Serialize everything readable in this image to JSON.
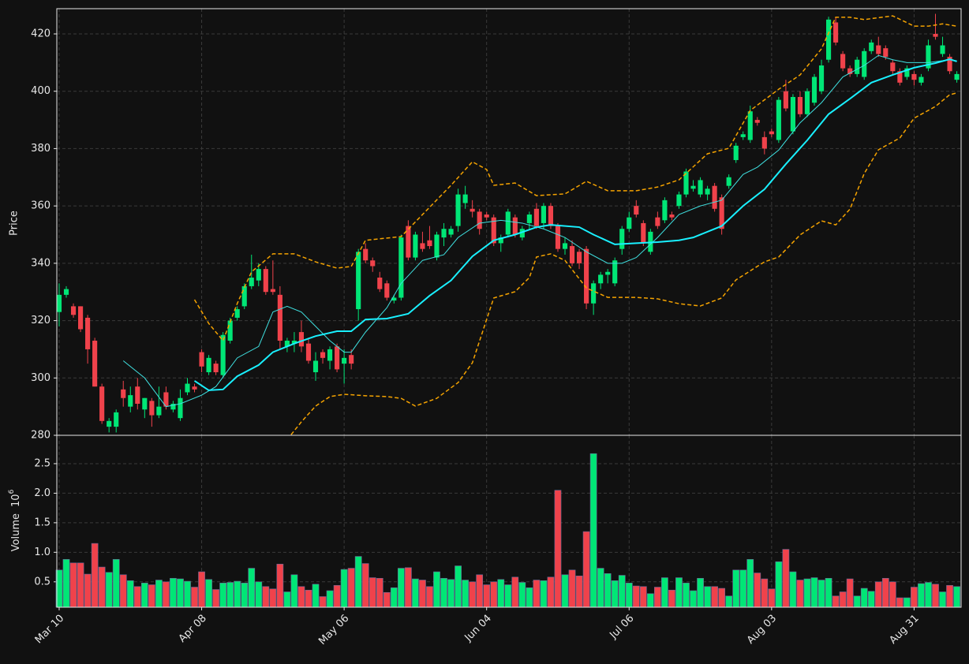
{
  "chart_data": [
    {
      "type": "candlestick",
      "y_label": "Price",
      "up_color": "#00e676",
      "down_color": "#f0424b",
      "xlim": [
        -0.33,
        126.6
      ],
      "ylim": [
        280,
        428.8
      ],
      "yticks": [
        280,
        300,
        320,
        340,
        360,
        380,
        400,
        420
      ],
      "grid": true,
      "open": [
        323,
        329,
        325,
        325,
        321,
        313,
        297,
        283,
        283,
        296,
        290,
        297,
        289,
        292,
        287,
        295,
        289,
        286,
        295,
        297,
        309,
        302,
        305,
        301,
        313,
        321,
        325,
        332,
        334,
        338,
        331,
        329,
        311,
        312,
        316,
        312,
        302,
        309,
        306,
        311,
        305,
        308,
        324,
        345,
        341,
        335,
        333,
        327,
        328,
        353,
        342,
        347,
        348,
        342,
        349,
        350,
        353,
        361,
        359,
        358,
        357,
        356,
        347,
        350,
        356,
        349,
        354,
        359,
        354,
        360,
        353,
        345,
        346,
        344,
        345,
        326,
        333,
        336,
        333,
        345,
        352,
        360,
        354,
        344,
        356,
        355,
        357,
        360,
        364,
        366,
        364,
        364,
        367,
        363,
        367,
        376,
        384,
        383,
        390,
        384,
        386,
        383,
        400,
        386,
        398,
        392,
        396,
        400,
        411,
        424,
        413,
        408,
        406,
        405,
        414,
        416,
        415,
        410,
        407,
        405,
        406,
        403,
        408,
        420,
        413,
        412,
        404
      ],
      "high": [
        333,
        332,
        326,
        325,
        322,
        314,
        298,
        286,
        289,
        299,
        297,
        300,
        293,
        293,
        297,
        297,
        292,
        296,
        300,
        298,
        310,
        308,
        306,
        316,
        321,
        325,
        333,
        343,
        340,
        339,
        341,
        332,
        314,
        316,
        320,
        314,
        309,
        310,
        311,
        312,
        310,
        310,
        345,
        347,
        342,
        337,
        334,
        329,
        350,
        355,
        351,
        351,
        353,
        351,
        354,
        353,
        366,
        367,
        362,
        359,
        358,
        357,
        350,
        359,
        357,
        353,
        358,
        361,
        361,
        361,
        354,
        349,
        348,
        345,
        346,
        334,
        337,
        338,
        342,
        353,
        358,
        362,
        355,
        352,
        358,
        363,
        358,
        365,
        373,
        369,
        370,
        367,
        368,
        364,
        371,
        382,
        386,
        395,
        391,
        386,
        387,
        398,
        404,
        399,
        400,
        401,
        406,
        411,
        426,
        426,
        414,
        409,
        412,
        415,
        418,
        419,
        416,
        411,
        408,
        409,
        407,
        406,
        418,
        427,
        419,
        413,
        407
      ],
      "low": [
        318,
        328,
        321,
        316,
        305,
        297,
        284,
        281,
        281,
        290,
        288,
        289,
        286,
        283,
        286,
        289,
        288,
        285,
        294,
        295,
        302,
        301,
        301,
        300,
        312,
        320,
        324,
        331,
        332,
        329,
        329,
        310,
        309,
        309,
        309,
        305,
        299,
        305,
        303,
        302,
        298,
        303,
        320,
        340,
        337,
        330,
        327,
        326,
        327,
        341,
        341,
        344,
        345,
        341,
        346,
        349,
        351,
        359,
        356,
        350,
        355,
        346,
        344,
        349,
        349,
        348,
        352,
        352,
        352,
        352,
        344,
        343,
        339,
        338,
        324,
        322,
        331,
        333,
        332,
        343,
        351,
        356,
        346,
        343,
        352,
        354,
        355,
        359,
        363,
        365,
        363,
        362,
        358,
        350,
        366,
        375,
        383,
        382,
        388,
        378,
        384,
        382,
        393,
        385,
        391,
        391,
        395,
        399,
        410,
        416,
        407,
        405,
        405,
        404,
        413,
        412,
        411,
        406,
        402,
        404,
        402,
        402,
        407,
        418,
        412,
        406,
        403
      ],
      "close": [
        329,
        331,
        322,
        317,
        310,
        297,
        285,
        285,
        288,
        293,
        294,
        291,
        293,
        287,
        290,
        290,
        291,
        293,
        298,
        296,
        304,
        307,
        302,
        315,
        320,
        324,
        332,
        335,
        338,
        330,
        330,
        313,
        313,
        313,
        311,
        306,
        306,
        307,
        310,
        303,
        307,
        305,
        344,
        341,
        339,
        331,
        328,
        328,
        349,
        342,
        350,
        345,
        346,
        350,
        352,
        352,
        364,
        364,
        358,
        352,
        356,
        347,
        349,
        358,
        350,
        352,
        357,
        353,
        360,
        353,
        345,
        347,
        340,
        340,
        326,
        333,
        336,
        337,
        341,
        352,
        356,
        357,
        347,
        351,
        353,
        362,
        356,
        364,
        372,
        367,
        369,
        366,
        359,
        352,
        370,
        381,
        385,
        393,
        389,
        380,
        385,
        397,
        394,
        398,
        392,
        400,
        405,
        409,
        425,
        417,
        408,
        406,
        411,
        414,
        417,
        413,
        412,
        407,
        403,
        408,
        404,
        405,
        416,
        419,
        416,
        407,
        406
      ],
      "lines": [
        {
          "color": "#f5a300",
          "width": 1.5,
          "dash": "5,3",
          "x": [
            19,
            21,
            23,
            25,
            27,
            30,
            33,
            36,
            39,
            41,
            43,
            46,
            48,
            51,
            55,
            58,
            60,
            61,
            64,
            67,
            71,
            74,
            77,
            81,
            84,
            87,
            91,
            94,
            97,
            101,
            104,
            107,
            109,
            111,
            113,
            117,
            120,
            122,
            124,
            126
          ],
          "values": [
            327.3,
            319,
            313,
            326,
            337,
            343.3,
            343.3,
            340.5,
            338.3,
            338.9,
            348,
            348.8,
            349.3,
            357,
            367.2,
            375.4,
            372.7,
            367.2,
            368,
            363.6,
            364.2,
            368.6,
            365.3,
            365.3,
            366.6,
            369.1,
            378.2,
            380.1,
            393.3,
            400.7,
            405.7,
            414.8,
            425.8,
            425.8,
            425,
            426.3,
            422.7,
            422.7,
            423.5,
            422.7
          ]
        },
        {
          "color": "#f5a300",
          "width": 1.5,
          "dash": "5,3",
          "x": [
            32,
            34,
            36,
            38,
            40,
            43,
            46,
            48,
            50,
            53,
            56,
            58,
            60,
            61,
            64,
            66,
            67,
            69,
            71,
            74,
            77,
            81,
            84,
            87,
            90,
            93,
            95,
            99,
            101,
            104,
            107,
            109,
            111,
            113,
            115,
            118,
            120,
            123,
            125,
            126
          ],
          "values": [
            278.5,
            284.7,
            290.2,
            293.5,
            294.3,
            293.8,
            293.5,
            292.9,
            290.2,
            292.9,
            298.4,
            305.3,
            320.4,
            327.9,
            330.1,
            335,
            342.2,
            343.3,
            341,
            331.4,
            328.1,
            328.1,
            327.6,
            325.9,
            325.1,
            327.9,
            334.2,
            340.5,
            342.2,
            349.9,
            354.8,
            353.4,
            358.9,
            371.3,
            379.6,
            383.7,
            390.6,
            394.7,
            398.8,
            399.4
          ]
        },
        {
          "color": "#3fe0e0",
          "width": 1,
          "dash": "none",
          "x": [
            9,
            12,
            15,
            17,
            20,
            22,
            25,
            28,
            30,
            32,
            34,
            36,
            38,
            40,
            41,
            43,
            46,
            48,
            51,
            54,
            56,
            59,
            62,
            65,
            68,
            71,
            74,
            77,
            79,
            81,
            84,
            87,
            90,
            93,
            96,
            98,
            101,
            104,
            107,
            110,
            113,
            115,
            117,
            119,
            122,
            125,
            126
          ],
          "values": [
            306,
            300,
            290,
            291,
            294,
            297,
            307,
            311,
            323,
            325,
            323,
            318,
            313,
            309,
            309,
            316,
            324.5,
            333,
            341,
            343,
            349,
            354,
            355,
            354,
            352,
            349,
            344,
            340,
            340,
            342,
            349,
            357,
            360,
            362,
            371,
            373.5,
            379.5,
            389,
            396,
            405,
            409,
            412.5,
            411,
            410,
            410,
            411,
            410.6
          ]
        },
        {
          "color": "#19f0ff",
          "width": 2,
          "dash": "none",
          "x": [
            19,
            21,
            23,
            25,
            28,
            30,
            33,
            36,
            39,
            41,
            43,
            46,
            49,
            52,
            55,
            58,
            61,
            64,
            67,
            69,
            73,
            75,
            78,
            81,
            84,
            87,
            89,
            93,
            96,
            99,
            102,
            105,
            108,
            111,
            114,
            117,
            120,
            123,
            125,
            126
          ],
          "values": [
            299,
            295.7,
            296,
            300.6,
            304.5,
            309,
            312,
            314.6,
            316.3,
            316.3,
            320.4,
            320.7,
            322.4,
            328.7,
            334,
            342.4,
            348,
            350,
            352.6,
            353.4,
            352.6,
            350,
            346.6,
            347,
            347.4,
            348,
            349,
            353,
            360,
            365.8,
            374.6,
            382.9,
            392,
            397.4,
            403,
            405.7,
            408.2,
            409.8,
            411.2,
            410.4
          ]
        }
      ]
    },
    {
      "type": "bar",
      "y_label": "Volume",
      "y_scale_base": "10",
      "y_scale_exponent": "6",
      "xlim": [
        -0.33,
        126.6
      ],
      "ylim": [
        0.07,
        2.98
      ],
      "yticks": [
        0.5,
        {
          "value": 1,
          "label": "1.0"
        },
        1.5,
        {
          "value": 2,
          "label": "2.0"
        },
        2.5
      ],
      "grid": true,
      "categories": [
        "Mar 10",
        null,
        null,
        null,
        null,
        null,
        null,
        null,
        null,
        null,
        null,
        null,
        null,
        null,
        null,
        null,
        null,
        null,
        null,
        null,
        "Apr 08",
        null,
        null,
        null,
        null,
        null,
        null,
        null,
        null,
        null,
        null,
        null,
        null,
        null,
        null,
        null,
        null,
        null,
        null,
        null,
        "May 06",
        null,
        null,
        null,
        null,
        null,
        null,
        null,
        null,
        null,
        null,
        null,
        null,
        null,
        null,
        null,
        null,
        null,
        null,
        null,
        "Jun 04",
        null,
        null,
        null,
        null,
        null,
        null,
        null,
        null,
        null,
        null,
        null,
        null,
        null,
        null,
        null,
        null,
        null,
        null,
        null,
        "Jul 06",
        null,
        null,
        null,
        null,
        null,
        null,
        null,
        null,
        null,
        null,
        null,
        null,
        null,
        null,
        null,
        null,
        null,
        null,
        null,
        "Aug 03",
        null,
        null,
        null,
        null,
        null,
        null,
        null,
        null,
        null,
        null,
        null,
        null,
        null,
        null,
        null,
        null,
        null,
        null,
        null,
        "Aug 31",
        null,
        null,
        null,
        null,
        null,
        null
      ],
      "values": [
        0.7,
        0.88,
        0.82,
        0.82,
        0.63,
        1.15,
        0.75,
        0.66,
        0.88,
        0.62,
        0.52,
        0.42,
        0.48,
        0.45,
        0.53,
        0.5,
        0.56,
        0.55,
        0.51,
        0.41,
        0.67,
        0.54,
        0.37,
        0.48,
        0.49,
        0.51,
        0.48,
        0.73,
        0.5,
        0.42,
        0.38,
        0.8,
        0.33,
        0.62,
        0.42,
        0.36,
        0.46,
        0.25,
        0.35,
        0.44,
        0.71,
        0.73,
        0.93,
        0.81,
        0.57,
        0.56,
        0.32,
        0.4,
        0.73,
        0.74,
        0.55,
        0.53,
        0.42,
        0.67,
        0.56,
        0.54,
        0.77,
        0.53,
        0.5,
        0.62,
        0.45,
        0.5,
        0.54,
        0.45,
        0.58,
        0.49,
        0.4,
        0.53,
        0.52,
        0.58,
        2.05,
        0.62,
        0.7,
        0.6,
        1.35,
        2.67,
        0.73,
        0.64,
        0.52,
        0.61,
        0.48,
        0.43,
        0.42,
        0.3,
        0.41,
        0.57,
        0.36,
        0.57,
        0.48,
        0.35,
        0.56,
        0.42,
        0.42,
        0.39,
        0.26,
        0.7,
        0.7,
        0.88,
        0.65,
        0.55,
        0.38,
        0.84,
        1.05,
        0.67,
        0.53,
        0.55,
        0.57,
        0.53,
        0.56,
        0.26,
        0.33,
        0.55,
        0.26,
        0.39,
        0.34,
        0.5,
        0.56,
        0.5,
        0.23,
        0.23,
        0.41,
        0.47,
        0.49,
        0.46,
        0.33,
        0.44,
        0.42
      ]
    }
  ]
}
